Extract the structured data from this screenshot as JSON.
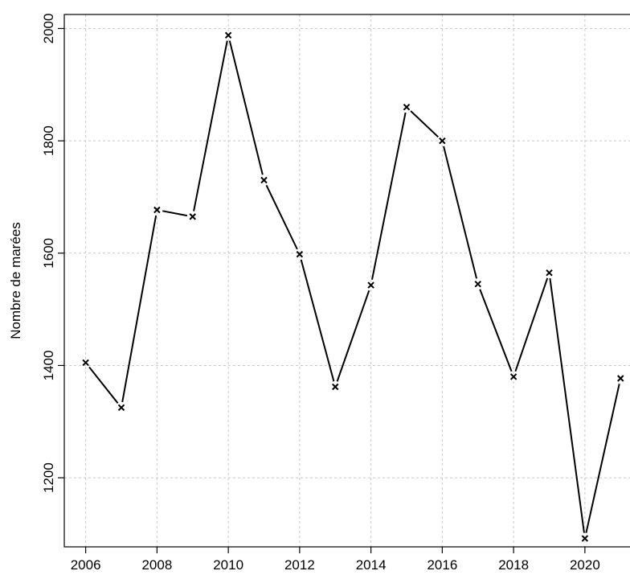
{
  "chart_data": {
    "type": "line",
    "title": "",
    "xlabel": "",
    "ylabel": "Nombre de marées",
    "x": [
      2006,
      2007,
      2008,
      2009,
      2010,
      2011,
      2012,
      2013,
      2014,
      2015,
      2016,
      2017,
      2018,
      2019,
      2020,
      2021
    ],
    "series": [
      {
        "values": [
          1405,
          1325,
          1677,
          1665,
          1988,
          1730,
          1598,
          1362,
          1543,
          1860,
          1800,
          1545,
          1380,
          1565,
          1092,
          1377
        ]
      }
    ],
    "xlim": [
      2005.4,
      2021.4
    ],
    "ylim": [
      1077,
      2025
    ],
    "x_ticks": [
      "2006",
      "2008",
      "2010",
      "2012",
      "2014",
      "2016",
      "2018",
      "2020"
    ],
    "y_ticks": [
      "1200",
      "1400",
      "1600",
      "1800",
      "2000"
    ],
    "marker": "x",
    "line_color": "#000000",
    "grid": true,
    "legend": "none"
  }
}
